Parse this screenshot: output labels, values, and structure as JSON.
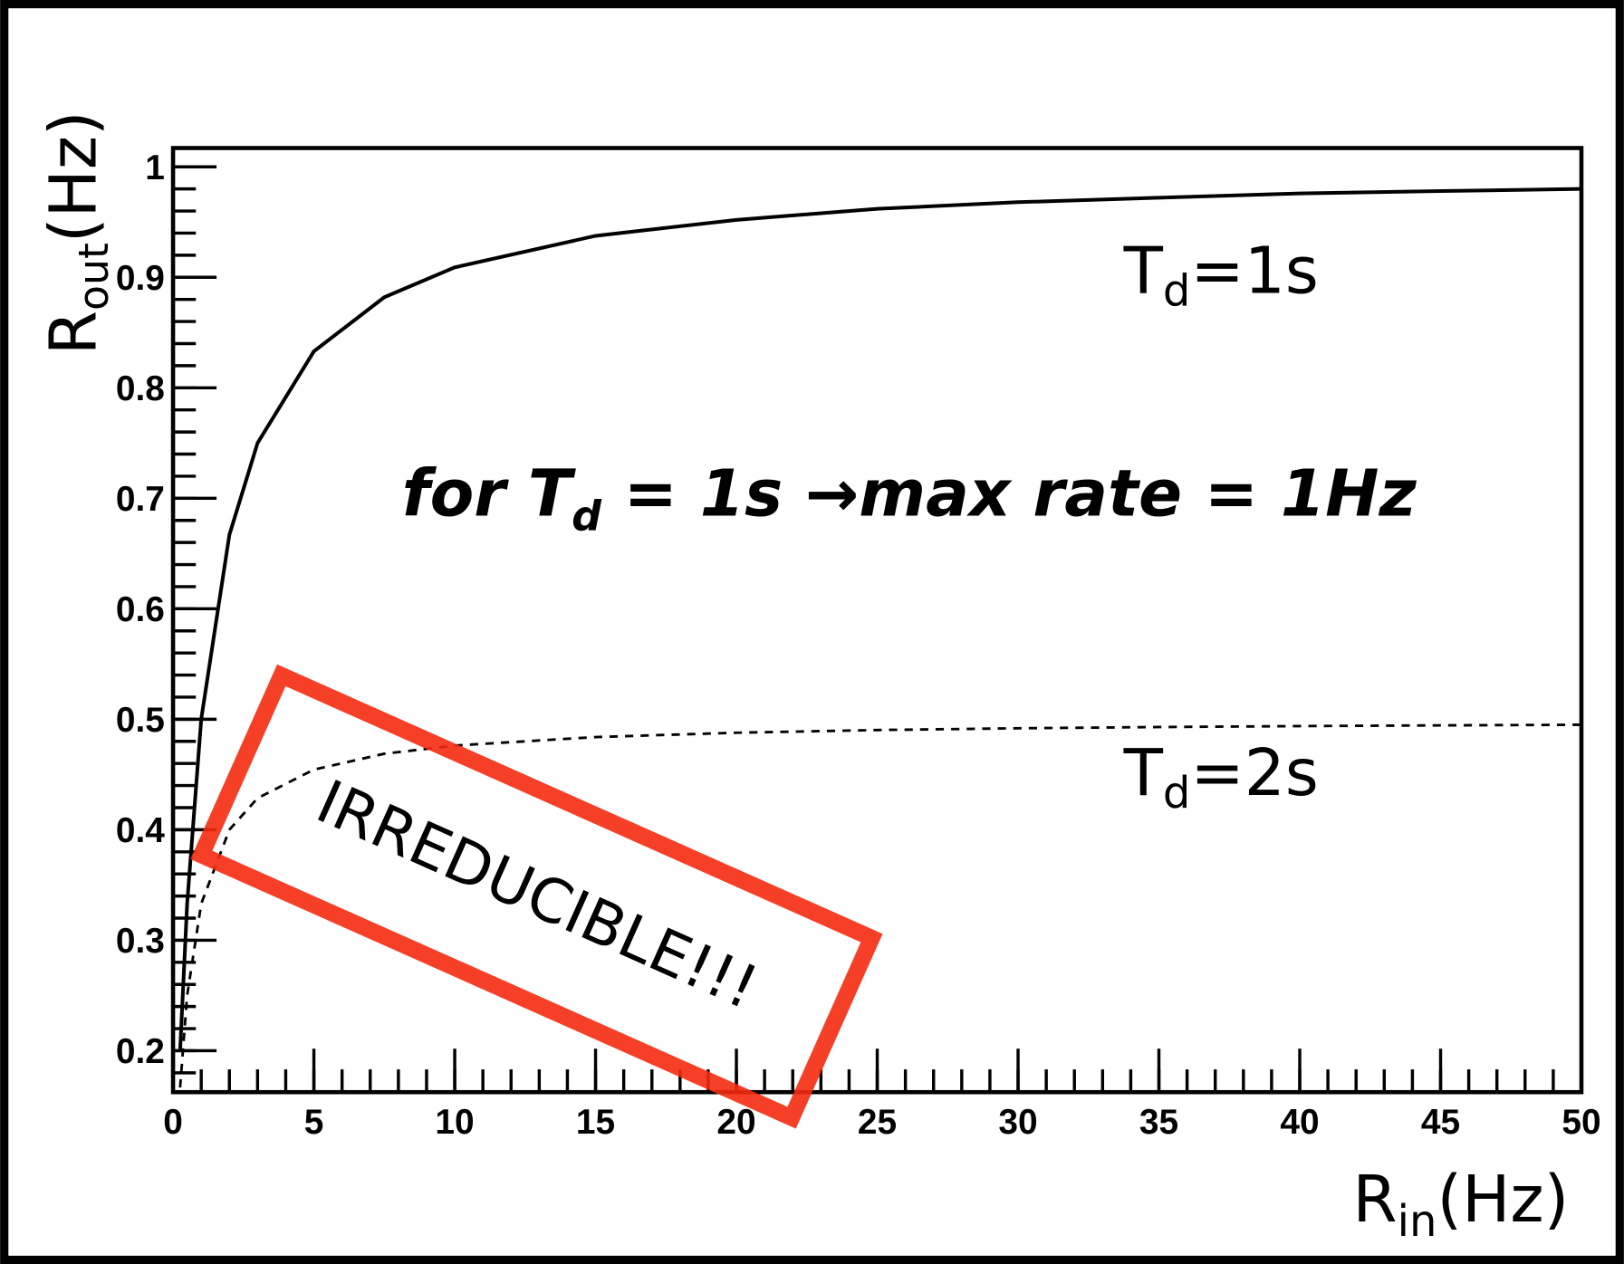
{
  "chart_data": {
    "type": "line",
    "x_label": [
      "R",
      "in",
      "(Hz)"
    ],
    "y_label": [
      "R",
      "out",
      "(Hz)"
    ],
    "annotation": [
      "for T",
      "d",
      " = 1s →max rate = 1Hz"
    ],
    "stamp": "IRREDUCIBLE!!!",
    "x": [
      0.25,
      0.5,
      1,
      2,
      3,
      5,
      7.5,
      10,
      15,
      20,
      25,
      30,
      35,
      40,
      45,
      50
    ],
    "series": [
      {
        "label": [
          "T",
          "d",
          "=1s"
        ],
        "color": "#000000",
        "dash": false,
        "values": [
          0.2,
          0.333,
          0.5,
          0.667,
          0.75,
          0.833,
          0.882,
          0.909,
          0.9375,
          0.952,
          0.962,
          0.968,
          0.972,
          0.976,
          0.978,
          0.98
        ]
      },
      {
        "label": [
          "T",
          "d",
          "=2s"
        ],
        "color": "#000000",
        "dash": true,
        "values": [
          0.1667,
          0.25,
          0.333,
          0.4,
          0.4286,
          0.4545,
          0.4688,
          0.4762,
          0.4839,
          0.4878,
          0.4902,
          0.4918,
          0.493,
          0.4938,
          0.4945,
          0.495
        ]
      }
    ],
    "xlim": [
      0,
      50
    ],
    "xticks": [
      0,
      5,
      10,
      15,
      20,
      25,
      30,
      35,
      40,
      45,
      50
    ],
    "ylim": [
      0.1625,
      1.017
    ],
    "yticks": [
      0.2,
      0.3,
      0.4,
      0.5,
      0.6,
      0.7,
      0.8,
      0.9,
      1
    ]
  }
}
